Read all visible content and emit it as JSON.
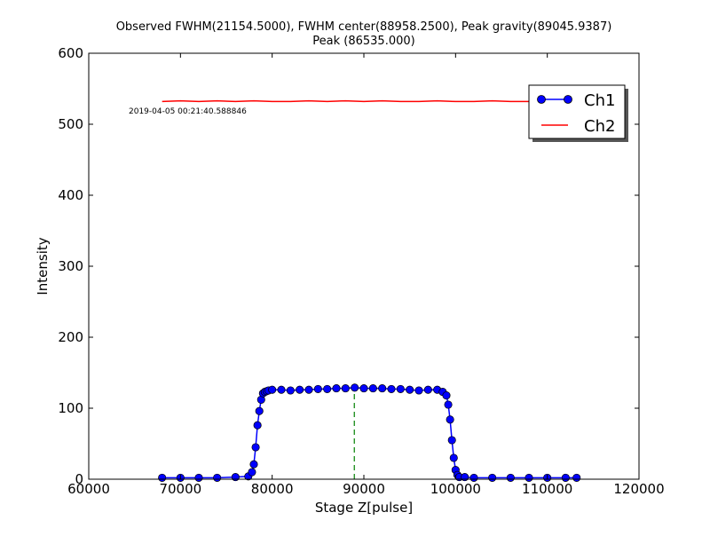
{
  "chart_data": {
    "type": "line",
    "title_line1": "Observed FWHM(21154.5000), FWHM center(88958.2500), Peak gravity(89045.9387)",
    "title_line2": "Peak (86535.000)",
    "xlabel": "Stage Z[pulse]",
    "ylabel": "Intensity",
    "xlim": [
      60000,
      120000
    ],
    "ylim": [
      0,
      600
    ],
    "xticks": [
      "60000",
      "70000",
      "80000",
      "90000",
      "100000",
      "110000",
      "120000"
    ],
    "yticks": [
      "0",
      "100",
      "200",
      "300",
      "400",
      "500",
      "600"
    ],
    "timestamp": "2019-04-05 00:21:40.588846",
    "grid": false,
    "legend_position": "top-right",
    "fwhm_center_x": 88958.25,
    "colors": {
      "ch1": "#0000ff",
      "ch2": "#ff0000",
      "center_line": "#008000"
    },
    "series": [
      {
        "name": "Ch1",
        "style": "line-with-markers",
        "x": [
          68000,
          70000,
          72000,
          74000,
          76000,
          77400,
          77800,
          78000,
          78200,
          78400,
          78600,
          78800,
          79000,
          79200,
          79400,
          79600,
          80000,
          81000,
          82000,
          83000,
          84000,
          85000,
          86000,
          87000,
          88000,
          89000,
          90000,
          91000,
          92000,
          93000,
          94000,
          95000,
          96000,
          97000,
          98000,
          98600,
          99000,
          99200,
          99400,
          99600,
          99800,
          100000,
          100200,
          100400,
          101000,
          102000,
          104000,
          106000,
          108000,
          110000,
          112000,
          113200
        ],
        "y": [
          2,
          2,
          2,
          2,
          3,
          4,
          10,
          21,
          45,
          76,
          96,
          112,
          121,
          123,
          124,
          125,
          126,
          126,
          125,
          126,
          126,
          127,
          127,
          128,
          128,
          129,
          128,
          128,
          128,
          127,
          127,
          126,
          125,
          126,
          126,
          123,
          118,
          105,
          84,
          55,
          30,
          13,
          6,
          3,
          3,
          2,
          2,
          2,
          2,
          2,
          2,
          2
        ]
      },
      {
        "name": "Ch2",
        "style": "line",
        "x": [
          68000,
          70000,
          72000,
          74000,
          76000,
          78000,
          80000,
          82000,
          84000,
          86000,
          88000,
          90000,
          92000,
          94000,
          96000,
          98000,
          100000,
          102000,
          104000,
          106000,
          108000,
          110000,
          112000,
          113200
        ],
        "y": [
          532,
          533,
          532,
          533,
          532,
          533,
          532,
          532,
          533,
          532,
          533,
          532,
          533,
          532,
          532,
          533,
          532,
          532,
          533,
          532,
          532,
          533,
          532,
          533
        ]
      }
    ]
  }
}
